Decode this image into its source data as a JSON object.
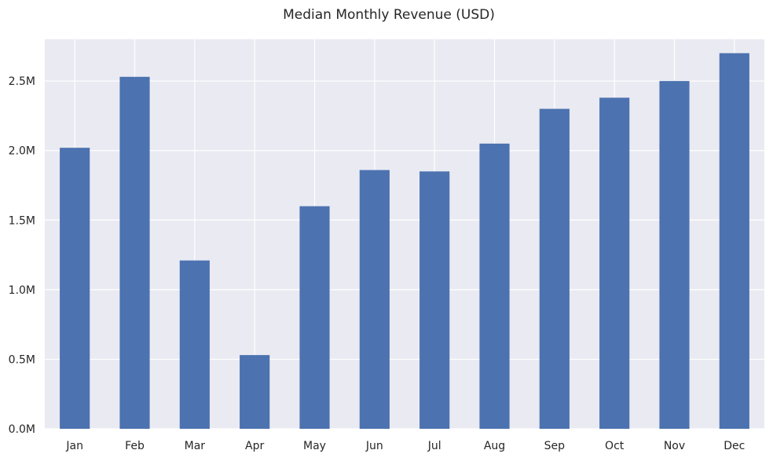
{
  "chart_data": {
    "type": "bar",
    "title": "Median Monthly Revenue (USD)",
    "xlabel": "",
    "ylabel": "",
    "categories": [
      "Jan",
      "Feb",
      "Mar",
      "Apr",
      "May",
      "Jun",
      "Jul",
      "Aug",
      "Sep",
      "Oct",
      "Nov",
      "Dec"
    ],
    "values": [
      2020000,
      2530000,
      1210000,
      530000,
      1600000,
      1860000,
      1850000,
      2050000,
      2300000,
      2380000,
      2500000,
      2700000
    ],
    "ylim": [
      0,
      2800000
    ],
    "yticks": [
      0,
      500000,
      1000000,
      1500000,
      2000000,
      2500000
    ],
    "ytick_labels": [
      "0.0M",
      "0.5M",
      "1.0M",
      "1.5M",
      "2.0M",
      "2.5M"
    ],
    "grid": true,
    "legend": "none",
    "colors": {
      "bar": "#4c72b0",
      "plot_background": "#eaeaf2",
      "grid": "#ffffff"
    }
  }
}
